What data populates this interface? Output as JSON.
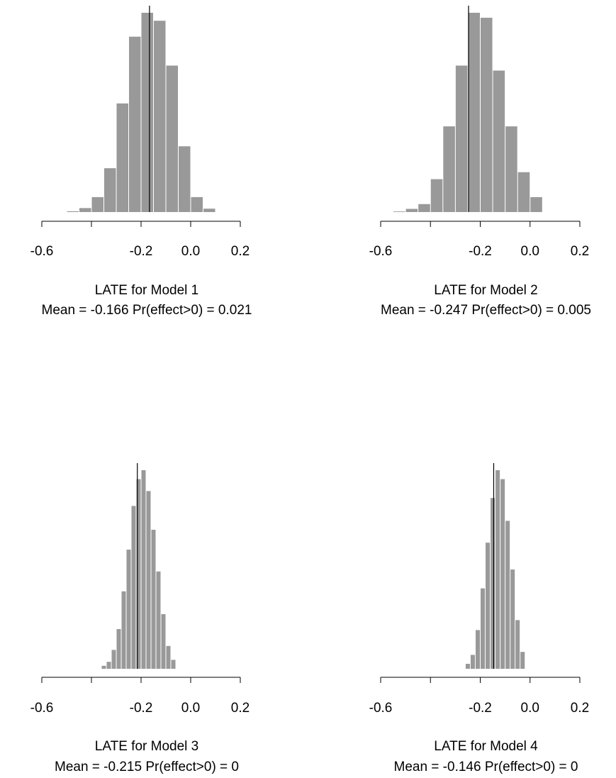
{
  "chart_data": [
    {
      "type": "bar",
      "title": "LATE for Model 1",
      "subtitle": "Mean = -0.166  Pr(effect>0) = 0.021",
      "mean_value": -0.166,
      "xlim": [
        -0.6,
        0.2
      ],
      "xticks": [
        -0.6,
        -0.4,
        -0.2,
        0.0,
        0.2
      ],
      "xtick_labels": [
        "-0.6",
        "",
        "-0.2",
        "0.0",
        "0.2"
      ],
      "bin_width": 0.05,
      "bin_starts": [
        -0.5,
        -0.45,
        -0.4,
        -0.35,
        -0.3,
        -0.25,
        -0.2,
        -0.15,
        -0.1,
        -0.05,
        0.0,
        0.05
      ],
      "values": [
        0.004,
        0.02,
        0.075,
        0.22,
        0.545,
        0.88,
        1.0,
        0.96,
        0.735,
        0.33,
        0.075,
        0.017
      ]
    },
    {
      "type": "bar",
      "title": "LATE for Model 2",
      "subtitle": "Mean = -0.247  Pr(effect>0) = 0.005",
      "mean_value": -0.247,
      "xlim": [
        -0.6,
        0.2
      ],
      "xticks": [
        -0.6,
        -0.4,
        -0.2,
        0.0,
        0.2
      ],
      "xtick_labels": [
        "-0.6",
        "",
        "-0.2",
        "0.0",
        "0.2"
      ],
      "bin_width": 0.05,
      "bin_starts": [
        -0.55,
        -0.5,
        -0.45,
        -0.4,
        -0.35,
        -0.3,
        -0.25,
        -0.2,
        -0.15,
        -0.1,
        -0.05,
        0.0
      ],
      "values": [
        0.003,
        0.016,
        0.04,
        0.165,
        0.43,
        0.735,
        1.0,
        0.975,
        0.71,
        0.43,
        0.2,
        0.075
      ]
    },
    {
      "type": "bar",
      "title": "LATE for Model 3",
      "subtitle": "Mean = -0.215  Pr(effect>0) = 0",
      "mean_value": -0.215,
      "xlim": [
        -0.6,
        0.2
      ],
      "xticks": [
        -0.6,
        -0.4,
        -0.2,
        0.0,
        0.2
      ],
      "xtick_labels": [
        "-0.6",
        "",
        "-0.2",
        "0.0",
        "0.2"
      ],
      "bin_width": 0.02,
      "bin_starts": [
        -0.36,
        -0.34,
        -0.32,
        -0.3,
        -0.28,
        -0.26,
        -0.24,
        -0.22,
        -0.2,
        -0.18,
        -0.16,
        -0.14,
        -0.12,
        -0.1,
        -0.08
      ],
      "values": [
        0.015,
        0.035,
        0.095,
        0.2,
        0.39,
        0.6,
        0.82,
        0.955,
        1.0,
        0.895,
        0.7,
        0.49,
        0.275,
        0.115,
        0.045
      ]
    },
    {
      "type": "bar",
      "title": "LATE for Model 4",
      "subtitle": "Mean = -0.146  Pr(effect>0) = 0",
      "mean_value": -0.146,
      "xlim": [
        -0.6,
        0.2
      ],
      "xticks": [
        -0.6,
        -0.4,
        -0.2,
        0.0,
        0.2
      ],
      "xtick_labels": [
        "-0.6",
        "",
        "-0.2",
        "0.0",
        "0.2"
      ],
      "bin_width": 0.02,
      "bin_starts": [
        -0.26,
        -0.24,
        -0.22,
        -0.2,
        -0.18,
        -0.16,
        -0.14,
        -0.12,
        -0.1,
        -0.08,
        -0.06,
        -0.04
      ],
      "values": [
        0.025,
        0.07,
        0.195,
        0.405,
        0.635,
        0.86,
        1.0,
        0.955,
        0.745,
        0.5,
        0.245,
        0.085
      ]
    }
  ]
}
